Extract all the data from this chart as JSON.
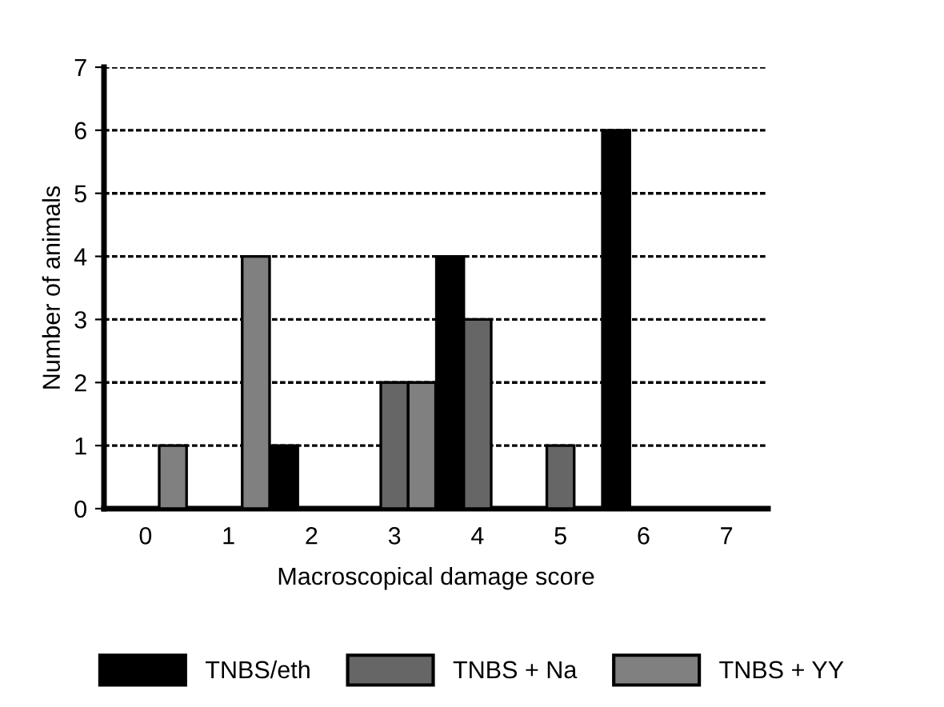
{
  "chart_data": {
    "type": "bar",
    "xlabel": "Macroscopical damage score",
    "ylabel": "Number of animals",
    "categories": [
      "0",
      "1",
      "2",
      "3",
      "4",
      "5",
      "6",
      "7"
    ],
    "series": [
      {
        "name": "TNBS/eth",
        "color": "#000000",
        "values": [
          0,
          0,
          1,
          0,
          4,
          0,
          6,
          0
        ]
      },
      {
        "name": "TNBS + Na",
        "color": "#666666",
        "values": [
          0,
          0,
          0,
          2,
          3,
          1,
          0,
          0
        ]
      },
      {
        "name": "TNBS + YY",
        "color": "#808080",
        "values": [
          1,
          4,
          0,
          2,
          0,
          0,
          0,
          0
        ]
      }
    ],
    "ylim": [
      0,
      7
    ],
    "yticks": [
      0,
      1,
      2,
      3,
      4,
      5,
      6,
      7
    ],
    "grid": "y",
    "legend": "bottom"
  }
}
